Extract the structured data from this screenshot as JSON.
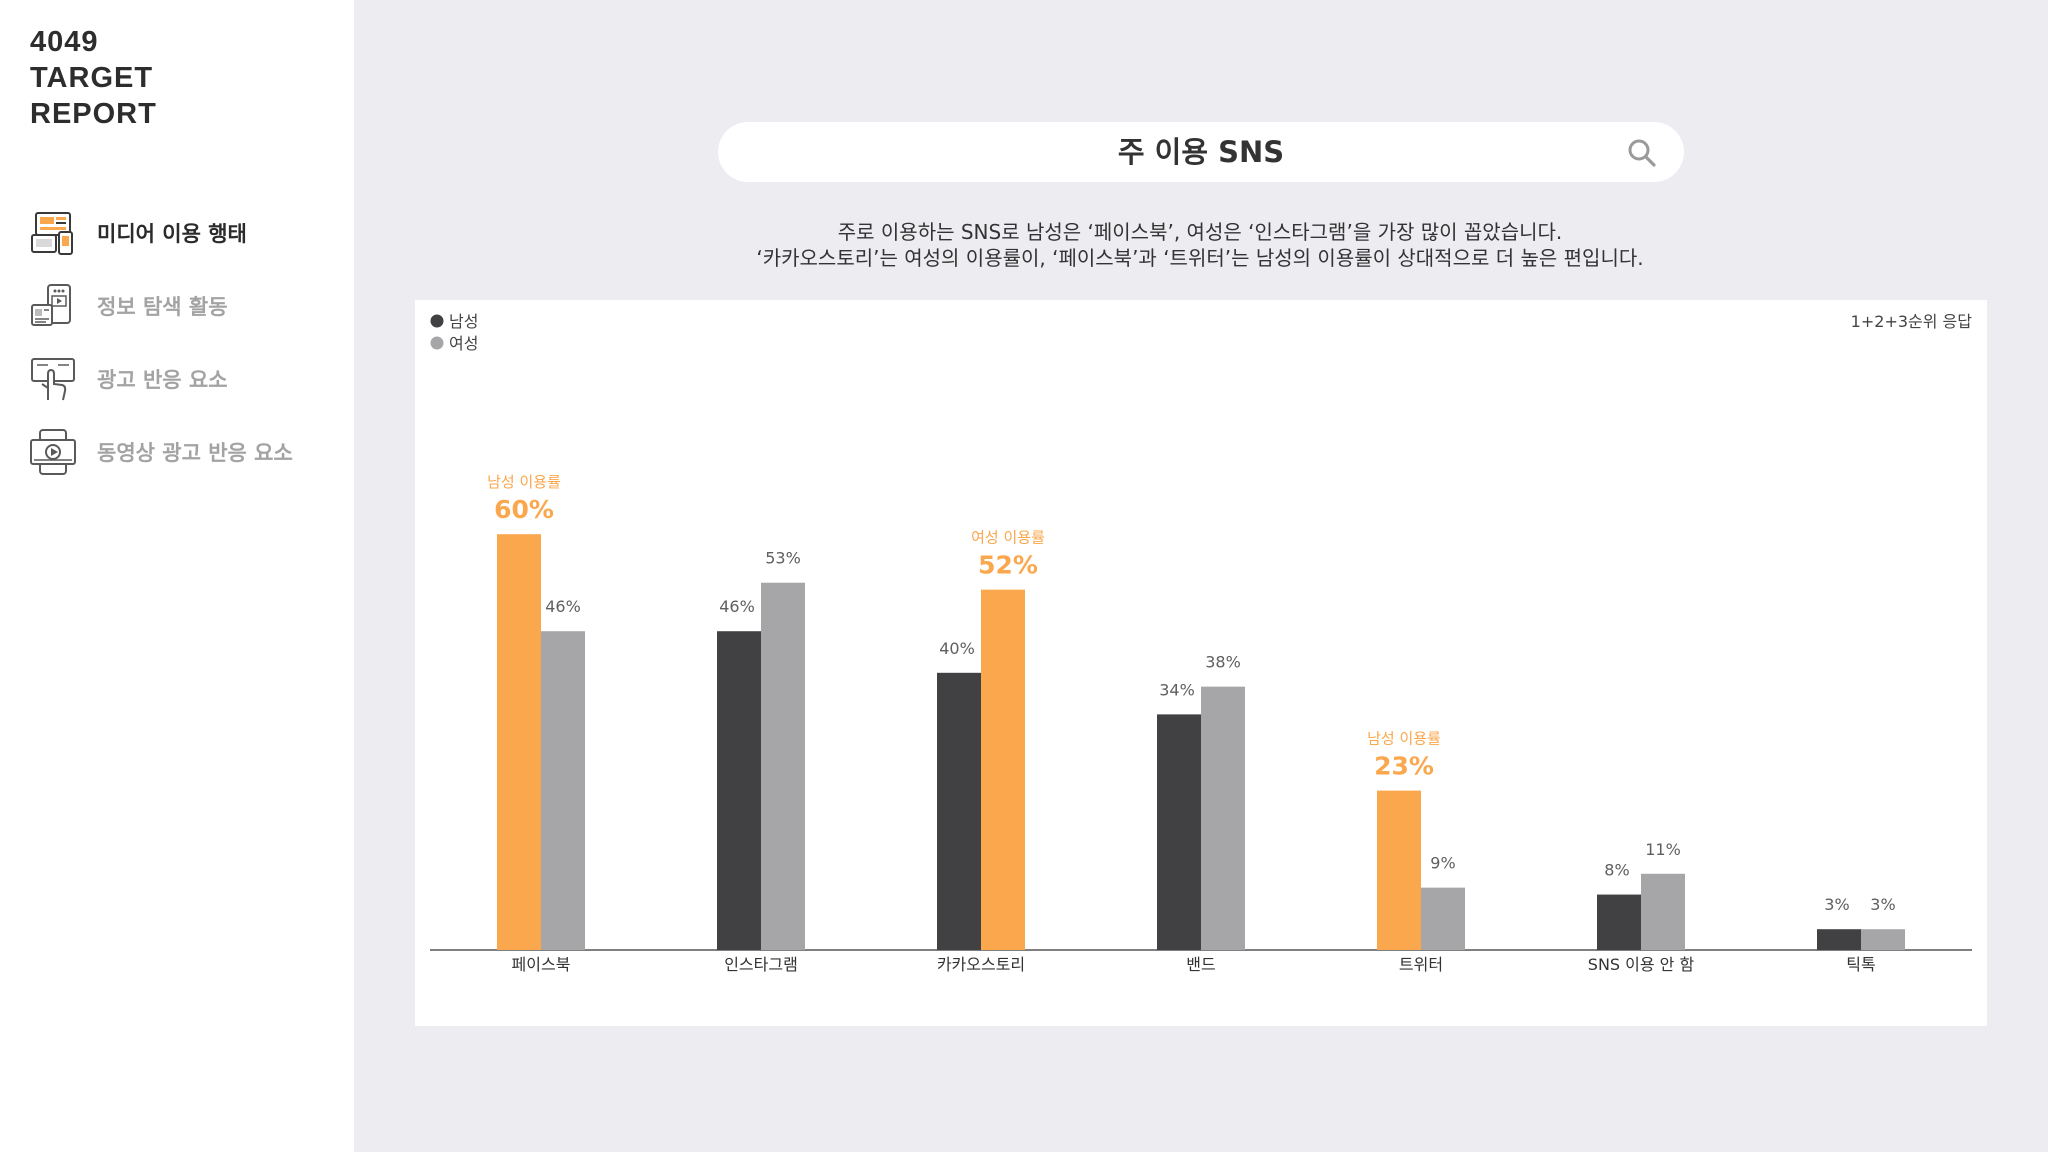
{
  "sidebar": {
    "logo_lines": [
      "4049",
      "TARGET",
      "REPORT"
    ],
    "items": [
      {
        "label": "미디어 이용 행태",
        "icon": "media-devices-icon",
        "active": true
      },
      {
        "label": "정보 탐색 활동",
        "icon": "info-search-icon",
        "active": false
      },
      {
        "label": "광고 반응 요소",
        "icon": "touch-ad-icon",
        "active": false
      },
      {
        "label": "동영상 광고 반응 요소",
        "icon": "video-ad-icon",
        "active": false
      }
    ]
  },
  "header": {
    "title": "주 이용 SNS",
    "search_icon": "search-icon"
  },
  "description": {
    "line1": "주로 이용하는 SNS로 남성은 ‘페이스북’, 여성은 ‘인스타그램’을 가장 많이 꼽았습니다.",
    "line2": "‘카카오스토리’는 여성의 이용률이, ‘페이스북’과 ‘트위터’는 남성의 이용률이 상대적으로 더 높은 편입니다."
  },
  "colors": {
    "male": "#414042",
    "female": "#a6a6a8",
    "highlight": "#fba74d",
    "axis": "#555555",
    "label": "#5f5f5f"
  },
  "chart_data": {
    "type": "bar",
    "note": "1+2+3순위 응답",
    "categories": [
      "페이스북",
      "인스타그램",
      "카카오스토리",
      "밴드",
      "트위터",
      "SNS 이용 안 함",
      "틱톡"
    ],
    "series": [
      {
        "name": "남성",
        "values": [
          60,
          46,
          40,
          34,
          23,
          8,
          3
        ]
      },
      {
        "name": "여성",
        "values": [
          46,
          53,
          52,
          38,
          9,
          11,
          3
        ]
      }
    ],
    "unit": "%",
    "ylim": [
      0,
      60
    ],
    "legend": "top-left",
    "grid": false,
    "highlights": [
      {
        "category": "페이스북",
        "series": "남성",
        "caption": "남성 이용률",
        "value_text": "60%"
      },
      {
        "category": "카카오스토리",
        "series": "여성",
        "caption": "여성 이용률",
        "value_text": "52%"
      },
      {
        "category": "트위터",
        "series": "남성",
        "caption": "남성 이용률",
        "value_text": "23%"
      }
    ]
  }
}
